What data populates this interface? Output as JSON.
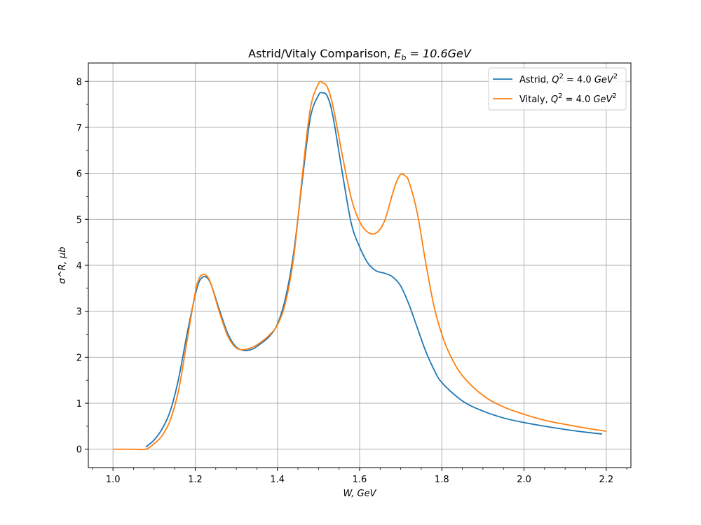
{
  "chart_data": {
    "type": "line",
    "title": "Astrid/Vitaly Comparison, E_b = 10.6GeV",
    "title_parts": {
      "prefix": "Astrid/Vitaly Comparison, ",
      "var": "E",
      "sub": "b",
      "suffix": " = 10.6GeV"
    },
    "xlabel": "W, GeV",
    "ylabel": "σ^R, μb",
    "xlim": [
      0.94,
      2.26
    ],
    "ylim": [
      -0.4,
      8.4
    ],
    "x_ticks": [
      1.0,
      1.2,
      1.4,
      1.6,
      1.8,
      2.0,
      2.2
    ],
    "x_tick_labels": [
      "1.0",
      "1.2",
      "1.4",
      "1.6",
      "1.8",
      "2.0",
      "2.2"
    ],
    "y_ticks": [
      0,
      1,
      2,
      3,
      4,
      5,
      6,
      7,
      8
    ],
    "y_tick_labels": [
      "0",
      "1",
      "2",
      "3",
      "4",
      "5",
      "6",
      "7",
      "8"
    ],
    "grid": true,
    "legend_position": "top-right",
    "series": [
      {
        "name": "Astrid, Q^2 = 4.0 GeV^2",
        "legend_parts": {
          "prefix": "Astrid, ",
          "var": "Q",
          "sup": "2",
          "mid": " = 4.0 ",
          "unit": "GeV",
          "unit_sup": "2"
        },
        "color": "#1f77b4",
        "x": [
          1.08,
          1.1,
          1.12,
          1.14,
          1.16,
          1.18,
          1.2,
          1.21,
          1.22,
          1.23,
          1.24,
          1.26,
          1.28,
          1.3,
          1.32,
          1.34,
          1.36,
          1.38,
          1.4,
          1.42,
          1.44,
          1.46,
          1.48,
          1.5,
          1.51,
          1.52,
          1.53,
          1.54,
          1.56,
          1.58,
          1.6,
          1.62,
          1.64,
          1.66,
          1.68,
          1.7,
          1.72,
          1.74,
          1.76,
          1.78,
          1.8,
          1.85,
          1.9,
          1.95,
          2.0,
          2.05,
          2.1,
          2.15,
          2.19
        ],
        "y": [
          0.05,
          0.2,
          0.45,
          0.85,
          1.55,
          2.5,
          3.35,
          3.65,
          3.75,
          3.72,
          3.55,
          3.0,
          2.5,
          2.22,
          2.15,
          2.18,
          2.3,
          2.45,
          2.72,
          3.3,
          4.3,
          5.8,
          7.2,
          7.7,
          7.75,
          7.7,
          7.45,
          7.0,
          5.9,
          4.9,
          4.4,
          4.05,
          3.88,
          3.83,
          3.75,
          3.55,
          3.15,
          2.65,
          2.15,
          1.75,
          1.45,
          1.05,
          0.83,
          0.68,
          0.58,
          0.5,
          0.43,
          0.37,
          0.33
        ]
      },
      {
        "name": "Vitaly, Q^2 = 4.0 GeV^2",
        "legend_parts": {
          "prefix": "Vitaly, ",
          "var": "Q",
          "sup": "2",
          "mid": " = 4.0 ",
          "unit": "GeV",
          "unit_sup": "2"
        },
        "color": "#ff7f0e",
        "x": [
          1.0,
          1.05,
          1.08,
          1.1,
          1.12,
          1.14,
          1.16,
          1.18,
          1.2,
          1.21,
          1.22,
          1.23,
          1.24,
          1.26,
          1.28,
          1.3,
          1.32,
          1.34,
          1.36,
          1.38,
          1.4,
          1.42,
          1.44,
          1.46,
          1.48,
          1.5,
          1.51,
          1.52,
          1.53,
          1.54,
          1.56,
          1.58,
          1.6,
          1.62,
          1.64,
          1.66,
          1.68,
          1.69,
          1.7,
          1.71,
          1.72,
          1.74,
          1.76,
          1.78,
          1.8,
          1.82,
          1.85,
          1.9,
          1.95,
          2.0,
          2.05,
          2.1,
          2.15,
          2.2
        ],
        "y": [
          0.0,
          0.0,
          0.0,
          0.12,
          0.3,
          0.65,
          1.3,
          2.35,
          3.4,
          3.72,
          3.8,
          3.75,
          3.55,
          2.95,
          2.45,
          2.2,
          2.17,
          2.22,
          2.33,
          2.48,
          2.7,
          3.2,
          4.2,
          5.9,
          7.4,
          7.95,
          7.97,
          7.9,
          7.65,
          7.25,
          6.3,
          5.45,
          4.95,
          4.72,
          4.7,
          4.95,
          5.55,
          5.82,
          5.98,
          5.95,
          5.82,
          5.15,
          4.1,
          3.15,
          2.5,
          2.05,
          1.6,
          1.17,
          0.92,
          0.76,
          0.63,
          0.54,
          0.46,
          0.39
        ]
      }
    ]
  }
}
